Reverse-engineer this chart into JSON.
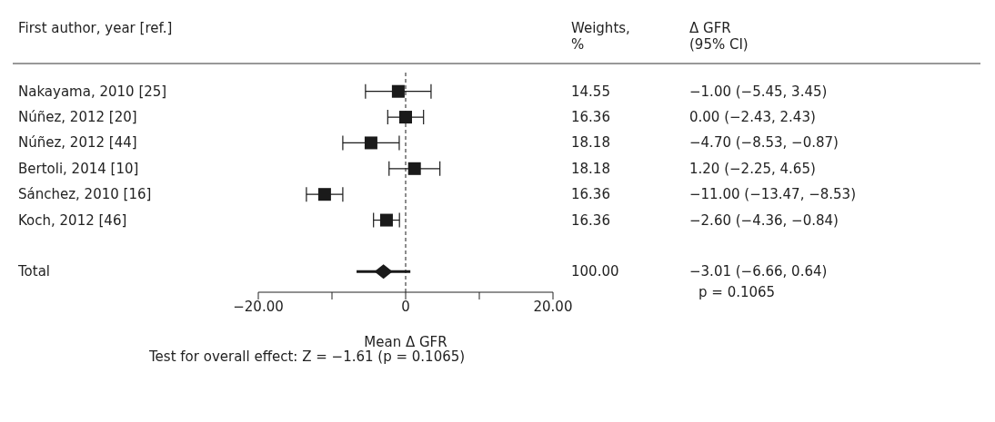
{
  "chart_data": {
    "type": "scatter",
    "orientation": "horizontal",
    "categories": [
      "Nakayama, 2010 [25]",
      "Núñez, 2012 [20]",
      "Núñez, 2012 [44]",
      "Bertoli, 2014 [10]",
      "Sánchez, 2010 [16]",
      "Koch, 2012 [46]",
      null,
      "Total"
    ],
    "series": [
      {
        "color": "#1a1a1a",
        "marker": "square",
        "values": [
          -1.0,
          0.0,
          -4.7,
          1.2,
          -11.0,
          -2.6,
          null,
          null
        ],
        "errors": [
          [
            -5.45,
            3.45
          ],
          [
            -2.43,
            2.43
          ],
          [
            -8.53,
            -0.87
          ],
          [
            -2.25,
            4.65
          ],
          [
            -13.47,
            -8.53
          ],
          [
            -4.36,
            -0.84
          ],
          null,
          null
        ]
      },
      {
        "color": "#1a1a1a",
        "marker": "diamond",
        "values": [
          null,
          null,
          null,
          null,
          null,
          null,
          null,
          -3.01
        ],
        "errors": [
          null,
          null,
          null,
          null,
          null,
          null,
          null,
          [
            -6.66,
            0.64
          ]
        ]
      }
    ],
    "xlim": [
      -20,
      20
    ],
    "xticks": [
      {
        "value": -20,
        "label": "−20.00"
      },
      {
        "value": -10,
        "label": null
      },
      {
        "value": 0,
        "label": "0"
      },
      {
        "value": 10,
        "label": null
      },
      {
        "value": 20,
        "label": "20.00"
      }
    ],
    "xlabel": "Mean Δ GFR",
    "ref_lines": [
      {
        "axis": "x",
        "value": 0,
        "line_style": "dashed",
        "color": "#1a1a1a"
      }
    ],
    "annotations": [
      "First author, year [ref.]",
      "Weights, %",
      "Δ GFR (95% CI)",
      "14.55",
      "16.36",
      "18.18",
      "18.18",
      "16.36",
      "16.36",
      "100.00",
      "−1.00 (−5.45, 3.45)",
      "0.00 (−2.43, 2.43)",
      "−4.70 (−8.53, −0.87)",
      "1.20 (−2.25, 4.65)",
      "−11.00 (−13.47, −8.53)",
      "−2.60 (−4.36, −0.84)",
      "−3.01 (−6.66, 0.64)",
      "p = 0.1065",
      "Test for overall effect: Z = −1.61 (p = 0.1065)"
    ],
    "grid": false,
    "legend": false
  }
}
